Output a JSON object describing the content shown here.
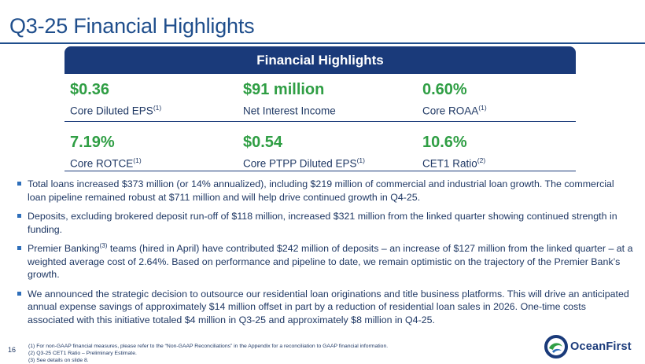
{
  "slide": {
    "title": "Q3-25 Financial Highlights",
    "page_number": "16"
  },
  "banner": {
    "label": "Financial Highlights"
  },
  "metrics": {
    "row1": [
      {
        "value": "$0.36",
        "label": "Core Diluted EPS",
        "note": "(1)"
      },
      {
        "value": "$91 million",
        "label": "Net Interest Income",
        "note": ""
      },
      {
        "value": "0.60%",
        "label": "Core ROAA",
        "note": "(1)"
      }
    ],
    "row2": [
      {
        "value": "7.19%",
        "label": "Core ROTCE",
        "note": "(1)"
      },
      {
        "value": "$0.54",
        "label": "Core PTPP Diluted EPS",
        "note": "(1)"
      },
      {
        "value": "10.6%",
        "label": "CET1 Ratio",
        "note": "(2)"
      }
    ]
  },
  "bullets": {
    "b1": "Total loans increased $373 million (or 14% annualized), including $219 million of commercial and industrial loan growth. The commercial loan pipeline remained robust at $711 million and will help drive continued growth in Q4-25.",
    "b2": "Deposits, excluding brokered deposit run-off of $118 million, increased $321 million from the linked quarter showing continued strength in funding.",
    "b3_pre": "Premier Banking",
    "b3_sup": "(3)",
    "b3_post": " teams (hired in April) have contributed $242 million of deposits – an increase of $127 million from the linked quarter – at a weighted average cost of 2.64%. Based on performance and pipeline to date, we remain optimistic on the trajectory of the Premier Bank’s growth.",
    "b4": "We announced the strategic decision to outsource our residential loan originations and title business platforms. This will drive an anticipated annual expense savings of approximately $14 million offset in part by a reduction of residential loan sales in 2026. One-time costs associated with this initiative totaled $4 million in Q3-25 and approximately $8 million in Q4-25."
  },
  "footnotes": [
    "(1) For non-GAAP financial measures, please refer to the “Non-GAAP Reconciliations” in the Appendix for a reconciliation to GAAP financial information.",
    "(2) Q3-25 CET1 Ratio – Preliminary Estimate.",
    "(3) See details on slide 8."
  ],
  "logo": {
    "text": "OceanFirst",
    "icon": "oceanfirst-swirl-icon"
  },
  "colors": {
    "navy": "#1a3a7a",
    "green": "#2f9e44",
    "title": "#1f4e8c"
  }
}
